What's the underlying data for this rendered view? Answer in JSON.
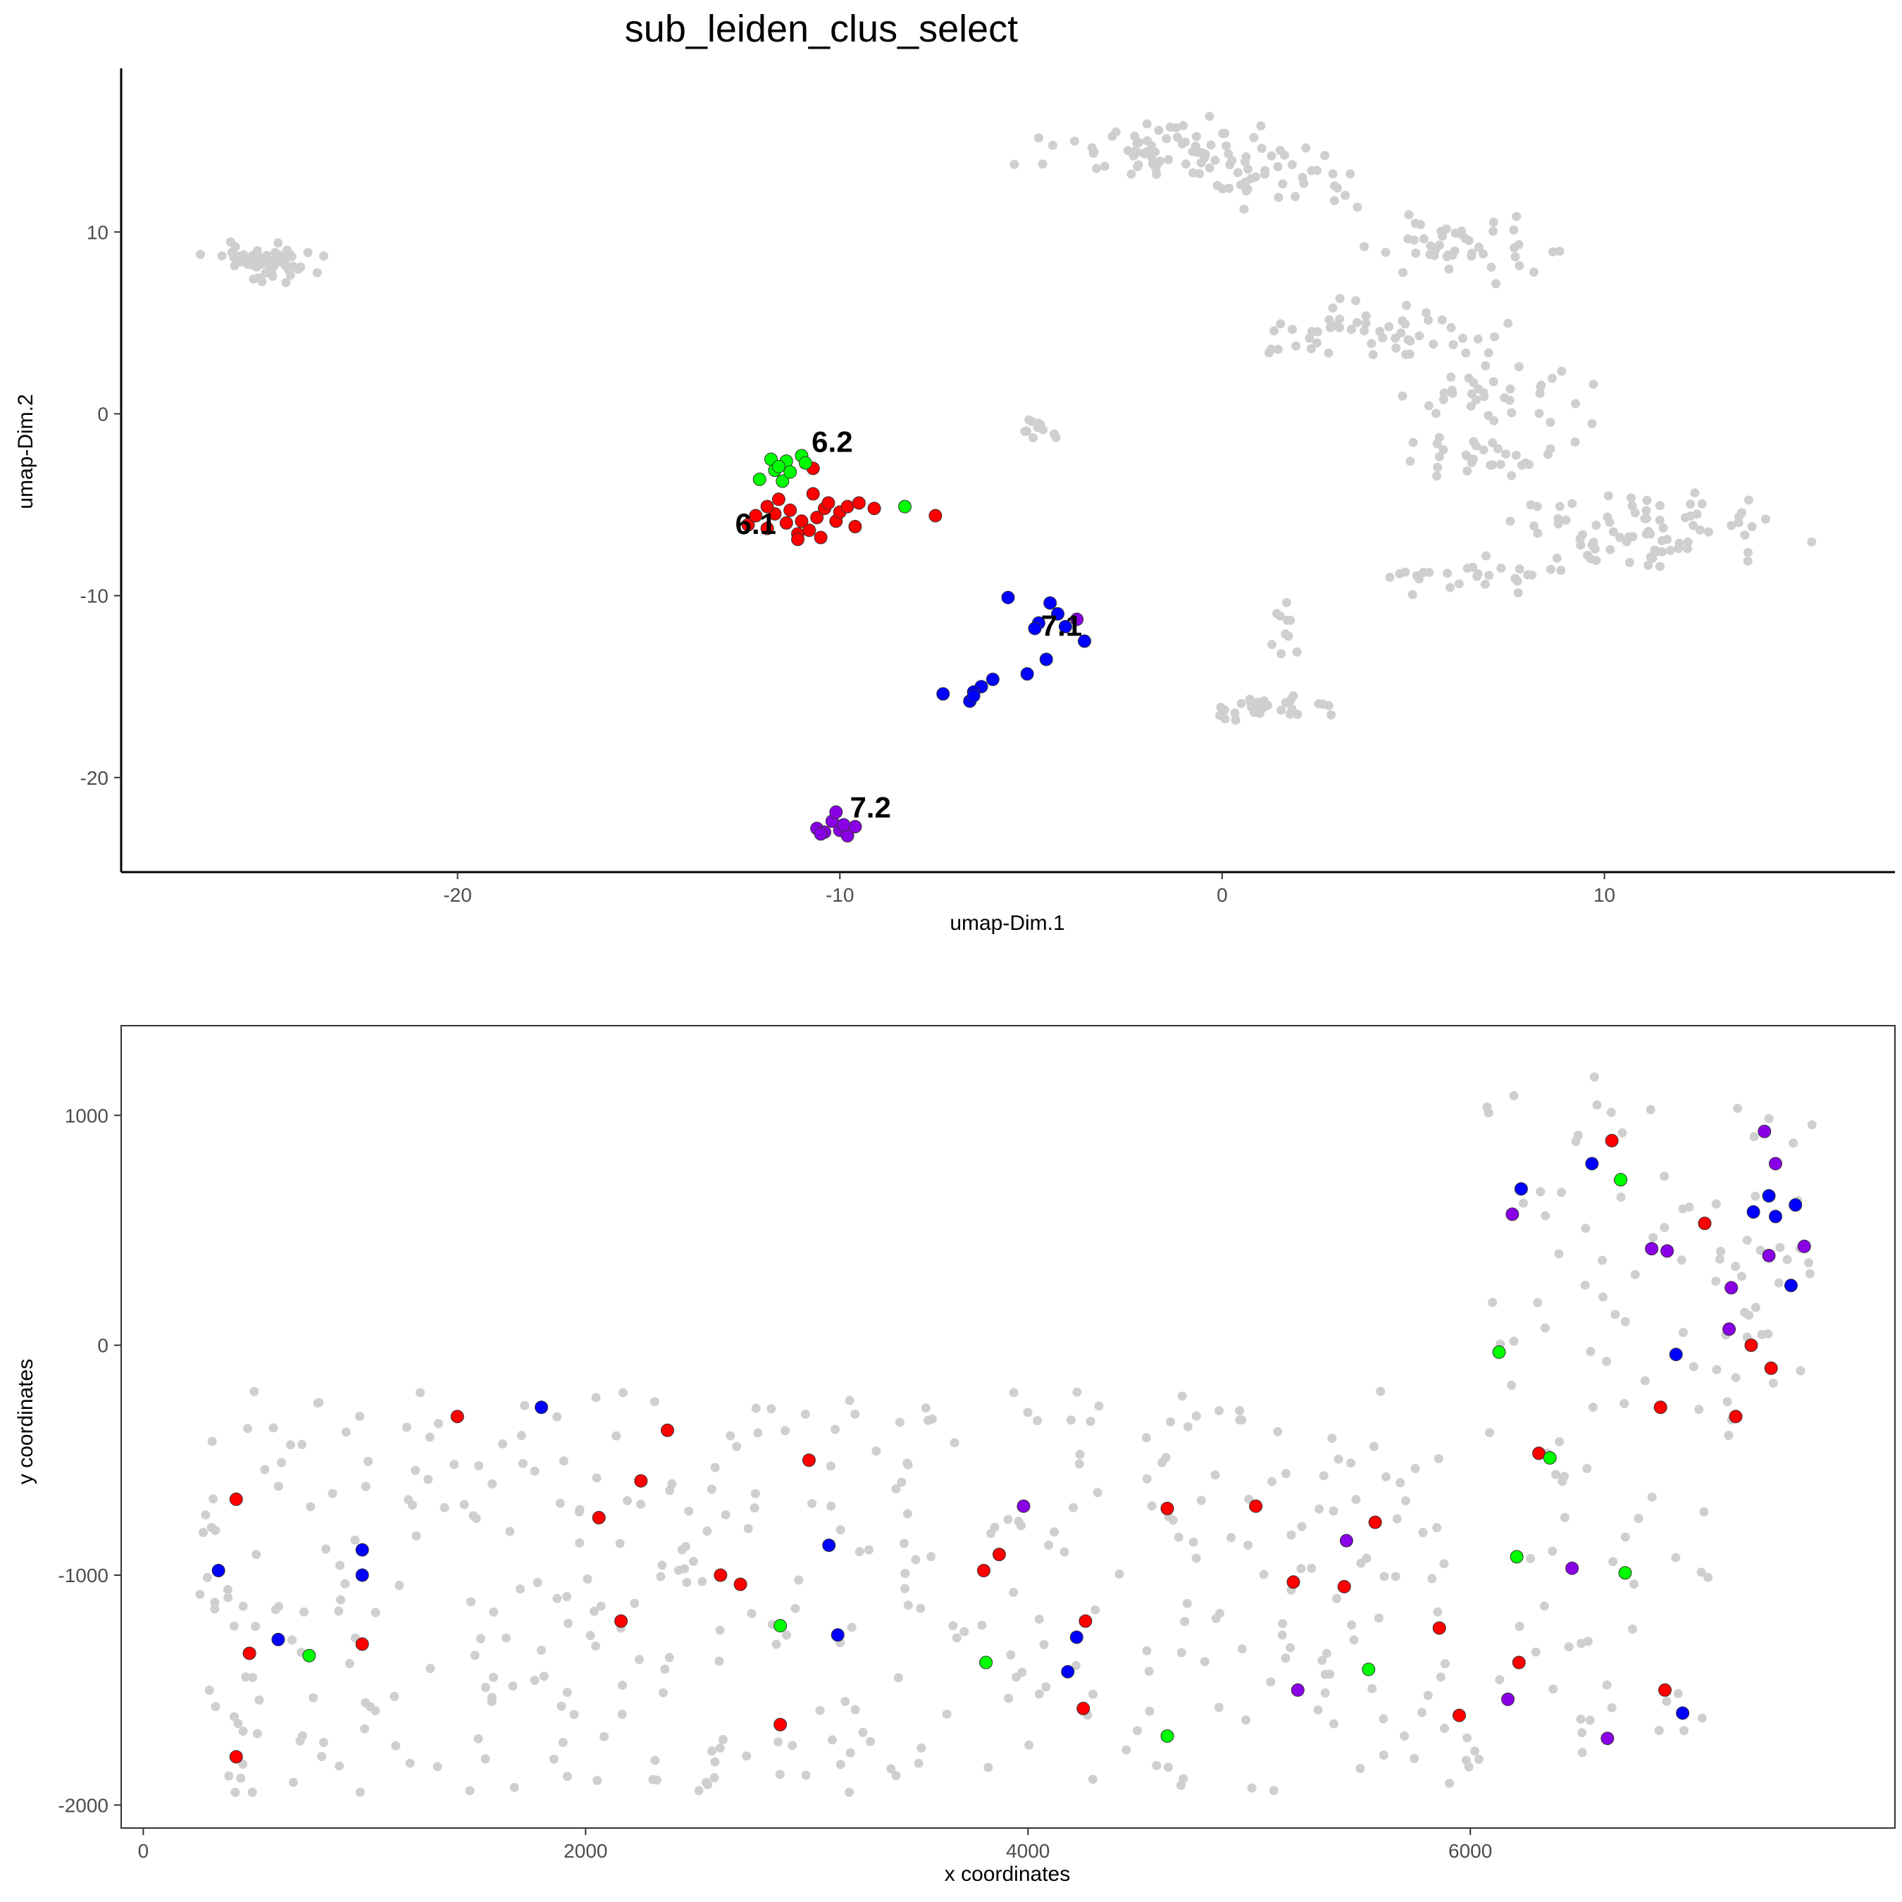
{
  "chart_data": [
    {
      "type": "scatter",
      "title": "sub_leiden_clus_select",
      "xlabel": "umap-Dim.1",
      "ylabel": "umap-Dim.2",
      "xlim": [
        -28.8,
        17.6
      ],
      "ylim": [
        -25.2,
        19.0
      ],
      "xticks": [
        -20,
        -10,
        0,
        10
      ],
      "yticks": [
        -20,
        -10,
        0,
        10
      ],
      "xtick_labels": [
        "-20",
        "-10",
        "0",
        "10"
      ],
      "ytick_labels": [
        "-20",
        "-10",
        "0",
        "10"
      ],
      "grid": false,
      "background_color": "#d0d0d0",
      "series": [
        {
          "cluster": "6.1",
          "color": "#ff0000",
          "points": [
            [
              -12.4,
              -6.1
            ],
            [
              -12.2,
              -5.6
            ],
            [
              -11.9,
              -6.3
            ],
            [
              -11.7,
              -5.5
            ],
            [
              -11.6,
              -4.7
            ],
            [
              -11.4,
              -6.0
            ],
            [
              -11.3,
              -5.3
            ],
            [
              -11.1,
              -6.6
            ],
            [
              -11.0,
              -5.9
            ],
            [
              -10.8,
              -6.4
            ],
            [
              -10.7,
              -4.4
            ],
            [
              -10.6,
              -5.7
            ],
            [
              -10.4,
              -5.2
            ],
            [
              -10.3,
              -4.9
            ],
            [
              -10.1,
              -5.9
            ],
            [
              -10.0,
              -5.4
            ],
            [
              -9.8,
              -5.1
            ],
            [
              -9.6,
              -6.2
            ],
            [
              -9.5,
              -4.9
            ],
            [
              -9.1,
              -5.2
            ],
            [
              -7.5,
              -5.6
            ],
            [
              -10.7,
              -3.0
            ],
            [
              -11.1,
              -6.9
            ],
            [
              -10.5,
              -6.8
            ],
            [
              -11.9,
              -5.1
            ]
          ]
        },
        {
          "cluster": "6.2",
          "color": "#00ff00",
          "points": [
            [
              -12.1,
              -3.6
            ],
            [
              -11.8,
              -2.5
            ],
            [
              -11.7,
              -3.1
            ],
            [
              -11.5,
              -3.7
            ],
            [
              -11.4,
              -2.6
            ],
            [
              -11.3,
              -3.2
            ],
            [
              -11.0,
              -2.3
            ],
            [
              -10.9,
              -2.7
            ],
            [
              -11.6,
              -2.9
            ],
            [
              -8.3,
              -5.1
            ]
          ]
        },
        {
          "cluster": "7.1",
          "color": "#0000ff",
          "points": [
            [
              -5.6,
              -10.1
            ],
            [
              -4.8,
              -11.5
            ],
            [
              -4.5,
              -10.4
            ],
            [
              -4.3,
              -11.0
            ],
            [
              -4.1,
              -11.7
            ],
            [
              -3.6,
              -12.5
            ],
            [
              -4.6,
              -13.5
            ],
            [
              -5.1,
              -14.3
            ],
            [
              -6.0,
              -14.6
            ],
            [
              -6.3,
              -15.0
            ],
            [
              -6.5,
              -15.3
            ],
            [
              -6.6,
              -15.8
            ],
            [
              -7.3,
              -15.4
            ],
            [
              -4.9,
              -11.8
            ],
            [
              -6.5,
              -15.5
            ]
          ]
        },
        {
          "cluster": "7.2",
          "color": "#8a00e6",
          "points": [
            [
              -10.6,
              -22.8
            ],
            [
              -10.4,
              -23.0
            ],
            [
              -10.2,
              -22.4
            ],
            [
              -10.0,
              -22.9
            ],
            [
              -9.8,
              -23.2
            ],
            [
              -9.6,
              -22.7
            ],
            [
              -10.1,
              -21.9
            ],
            [
              -10.5,
              -23.1
            ],
            [
              -9.9,
              -22.6
            ],
            [
              -3.8,
              -11.3
            ]
          ]
        }
      ],
      "labels": [
        {
          "text": "6.1",
          "x": -12.2,
          "y": -6.6
        },
        {
          "text": "6.2",
          "x": -10.2,
          "y": -2.1
        },
        {
          "text": "7.1",
          "x": -4.2,
          "y": -12.2
        },
        {
          "text": "7.2",
          "x": -9.2,
          "y": -22.2
        }
      ]
    },
    {
      "type": "scatter",
      "title": "",
      "xlabel": "x coordinates",
      "ylabel": "y coordinates",
      "xlim": [
        -100,
        7920
      ],
      "ylim": [
        -2100,
        1390
      ],
      "xticks": [
        0,
        2000,
        4000,
        6000
      ],
      "yticks": [
        -2000,
        -1000,
        0,
        1000
      ],
      "xtick_labels": [
        "0",
        "2000",
        "4000",
        "6000"
      ],
      "ytick_labels": [
        "-2000",
        "-1000",
        "0",
        "1000"
      ],
      "grid": false,
      "background_color": "#d0d0d0",
      "series": [
        {
          "cluster": "6.1",
          "color": "#ff0000",
          "points": [
            [
              420,
              -670
            ],
            [
              480,
              -1340
            ],
            [
              420,
              -1790
            ],
            [
              990,
              -1300
            ],
            [
              1420,
              -310
            ],
            [
              2060,
              -750
            ],
            [
              2160,
              -1200
            ],
            [
              2250,
              -590
            ],
            [
              2370,
              -370
            ],
            [
              2610,
              -1000
            ],
            [
              2700,
              -1040
            ],
            [
              2880,
              -1650
            ],
            [
              3010,
              -500
            ],
            [
              3800,
              -980
            ],
            [
              3870,
              -910
            ],
            [
              4260,
              -1200
            ],
            [
              4250,
              -1580
            ],
            [
              4630,
              -710
            ],
            [
              5030,
              -700
            ],
            [
              5200,
              -1030
            ],
            [
              5430,
              -1050
            ],
            [
              5570,
              -770
            ],
            [
              5860,
              -1230
            ],
            [
              5950,
              -1610
            ],
            [
              6220,
              -1380
            ],
            [
              6310,
              -470
            ],
            [
              6640,
              890
            ],
            [
              6860,
              -270
            ],
            [
              6880,
              -1500
            ],
            [
              7060,
              530
            ],
            [
              7200,
              -310
            ],
            [
              7270,
              0
            ],
            [
              7360,
              -100
            ]
          ]
        },
        {
          "cluster": "6.2",
          "color": "#00ff00",
          "points": [
            [
              750,
              -1350
            ],
            [
              2880,
              -1220
            ],
            [
              3810,
              -1380
            ],
            [
              4630,
              -1700
            ],
            [
              5540,
              -1410
            ],
            [
              6130,
              -30
            ],
            [
              6210,
              -920
            ],
            [
              6360,
              -490
            ],
            [
              6680,
              720
            ],
            [
              6700,
              -990
            ]
          ]
        },
        {
          "cluster": "7.1",
          "color": "#0000ff",
          "points": [
            [
              340,
              -980
            ],
            [
              610,
              -1280
            ],
            [
              990,
              -890
            ],
            [
              990,
              -1000
            ],
            [
              1800,
              -270
            ],
            [
              3100,
              -870
            ],
            [
              3140,
              -1260
            ],
            [
              4180,
              -1420
            ],
            [
              4220,
              -1270
            ],
            [
              6230,
              680
            ],
            [
              6550,
              790
            ],
            [
              6930,
              -40
            ],
            [
              6960,
              -1600
            ],
            [
              7280,
              580
            ],
            [
              7350,
              650
            ],
            [
              7380,
              560
            ],
            [
              7450,
              260
            ],
            [
              7470,
              610
            ]
          ]
        },
        {
          "cluster": "7.2",
          "color": "#8a00e6",
          "points": [
            [
              3980,
              -700
            ],
            [
              5220,
              -1500
            ],
            [
              5440,
              -850
            ],
            [
              6170,
              -1540
            ],
            [
              6190,
              570
            ],
            [
              6460,
              -970
            ],
            [
              6620,
              -1710
            ],
            [
              6820,
              420
            ],
            [
              6890,
              410
            ],
            [
              7180,
              250
            ],
            [
              7170,
              70
            ],
            [
              7330,
              930
            ],
            [
              7350,
              390
            ],
            [
              7380,
              790
            ],
            [
              7510,
              430
            ]
          ]
        }
      ]
    }
  ]
}
